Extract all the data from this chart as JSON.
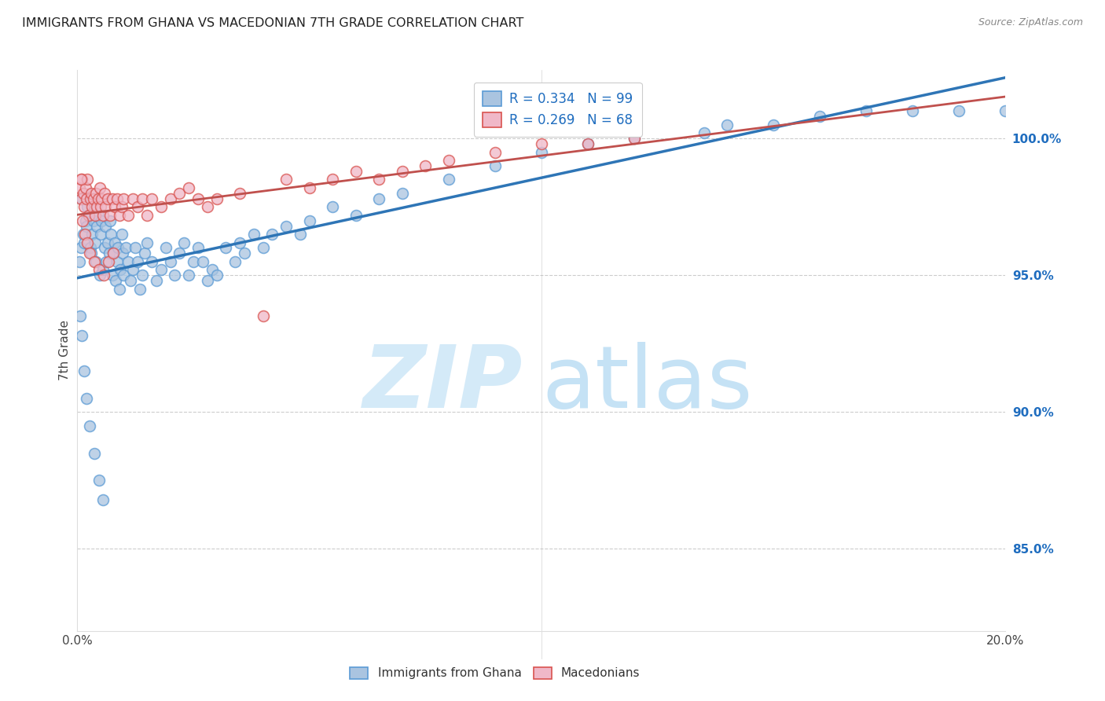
{
  "title": "IMMIGRANTS FROM GHANA VS MACEDONIAN 7TH GRADE CORRELATION CHART",
  "source": "Source: ZipAtlas.com",
  "ylabel": "7th Grade",
  "right_yticks": [
    100.0,
    95.0,
    90.0,
    85.0
  ],
  "xlim": [
    0.0,
    20.0
  ],
  "ylim": [
    82.0,
    102.5
  ],
  "legend_entry1": "R = 0.334   N = 99",
  "legend_entry2": "R = 0.269   N = 68",
  "series1_label": "Immigrants from Ghana",
  "series2_label": "Macedonians",
  "series1_face": "#aac4e0",
  "series2_face": "#f0b8c8",
  "series1_edge": "#5b9bd5",
  "series2_edge": "#d9534f",
  "trendline1_color": "#2e75b6",
  "trendline2_color": "#c0504d",
  "watermark_zip_color": "#cce0f0",
  "watermark_atlas_color": "#b8d8f0",
  "marker_size": 100,
  "ghana_x": [
    0.05,
    0.08,
    0.1,
    0.12,
    0.15,
    0.18,
    0.2,
    0.22,
    0.25,
    0.28,
    0.3,
    0.32,
    0.35,
    0.38,
    0.4,
    0.42,
    0.45,
    0.48,
    0.5,
    0.52,
    0.55,
    0.58,
    0.6,
    0.62,
    0.65,
    0.68,
    0.7,
    0.72,
    0.75,
    0.78,
    0.8,
    0.82,
    0.85,
    0.88,
    0.9,
    0.92,
    0.95,
    0.98,
    1.0,
    1.05,
    1.1,
    1.15,
    1.2,
    1.25,
    1.3,
    1.35,
    1.4,
    1.45,
    1.5,
    1.6,
    1.7,
    1.8,
    1.9,
    2.0,
    2.1,
    2.2,
    2.3,
    2.4,
    2.5,
    2.6,
    2.7,
    2.8,
    2.9,
    3.0,
    3.2,
    3.4,
    3.5,
    3.6,
    3.8,
    4.0,
    4.2,
    4.5,
    4.8,
    5.0,
    5.5,
    6.0,
    6.5,
    7.0,
    8.0,
    9.0,
    10.0,
    11.0,
    12.0,
    13.5,
    14.0,
    15.0,
    16.0,
    17.0,
    18.0,
    19.0,
    20.0,
    0.06,
    0.09,
    0.14,
    0.19,
    0.26,
    0.36,
    0.46,
    0.56
  ],
  "ghana_y": [
    95.5,
    96.0,
    97.8,
    96.5,
    96.2,
    97.0,
    96.8,
    97.5,
    97.2,
    96.0,
    95.8,
    96.5,
    97.0,
    96.2,
    95.5,
    96.8,
    97.2,
    95.0,
    96.5,
    97.0,
    95.2,
    96.0,
    96.8,
    95.5,
    96.2,
    95.8,
    97.0,
    96.5,
    95.0,
    95.8,
    96.2,
    94.8,
    95.5,
    96.0,
    94.5,
    95.2,
    96.5,
    95.8,
    95.0,
    96.0,
    95.5,
    94.8,
    95.2,
    96.0,
    95.5,
    94.5,
    95.0,
    95.8,
    96.2,
    95.5,
    94.8,
    95.2,
    96.0,
    95.5,
    95.0,
    95.8,
    96.2,
    95.0,
    95.5,
    96.0,
    95.5,
    94.8,
    95.2,
    95.0,
    96.0,
    95.5,
    96.2,
    95.8,
    96.5,
    96.0,
    96.5,
    96.8,
    96.5,
    97.0,
    97.5,
    97.2,
    97.8,
    98.0,
    98.5,
    99.0,
    99.5,
    99.8,
    100.0,
    100.2,
    100.5,
    100.5,
    100.8,
    101.0,
    101.0,
    101.0,
    101.0,
    93.5,
    92.8,
    91.5,
    90.5,
    89.5,
    88.5,
    87.5,
    86.8
  ],
  "mac_x": [
    0.05,
    0.08,
    0.1,
    0.12,
    0.15,
    0.18,
    0.2,
    0.22,
    0.25,
    0.28,
    0.3,
    0.32,
    0.35,
    0.38,
    0.4,
    0.42,
    0.45,
    0.48,
    0.5,
    0.52,
    0.55,
    0.58,
    0.6,
    0.65,
    0.7,
    0.75,
    0.8,
    0.85,
    0.9,
    0.95,
    1.0,
    1.1,
    1.2,
    1.3,
    1.4,
    1.5,
    1.6,
    1.8,
    2.0,
    2.2,
    2.4,
    2.6,
    2.8,
    3.0,
    3.5,
    4.0,
    4.5,
    5.0,
    5.5,
    6.0,
    6.5,
    7.0,
    7.5,
    8.0,
    9.0,
    10.0,
    11.0,
    12.0,
    0.07,
    0.11,
    0.16,
    0.21,
    0.27,
    0.37,
    0.47,
    0.57,
    0.67,
    0.77
  ],
  "mac_y": [
    98.2,
    97.8,
    98.5,
    98.0,
    97.5,
    98.2,
    97.8,
    98.5,
    97.2,
    97.8,
    98.0,
    97.5,
    97.8,
    97.2,
    98.0,
    97.5,
    97.8,
    98.2,
    97.5,
    97.8,
    97.2,
    98.0,
    97.5,
    97.8,
    97.2,
    97.8,
    97.5,
    97.8,
    97.2,
    97.5,
    97.8,
    97.2,
    97.8,
    97.5,
    97.8,
    97.2,
    97.8,
    97.5,
    97.8,
    98.0,
    98.2,
    97.8,
    97.5,
    97.8,
    98.0,
    93.5,
    98.5,
    98.2,
    98.5,
    98.8,
    98.5,
    98.8,
    99.0,
    99.2,
    99.5,
    99.8,
    99.8,
    100.0,
    98.5,
    97.0,
    96.5,
    96.2,
    95.8,
    95.5,
    95.2,
    95.0,
    95.5,
    95.8
  ]
}
